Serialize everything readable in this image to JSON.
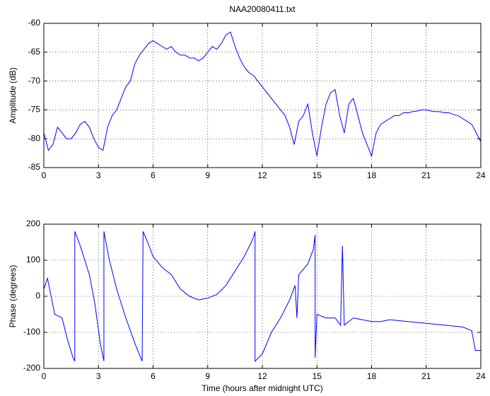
{
  "chart_data": [
    {
      "type": "line",
      "title": "NAA20080411.txt",
      "ylabel": "Amplitude (dB)",
      "x": [
        0,
        0.25,
        0.5,
        0.75,
        1,
        1.25,
        1.5,
        1.75,
        2,
        2.25,
        2.5,
        2.75,
        3,
        3.25,
        3.5,
        3.75,
        4,
        4.25,
        4.5,
        4.75,
        5,
        5.25,
        5.5,
        5.75,
        6,
        6.25,
        6.5,
        6.75,
        7,
        7.25,
        7.5,
        7.75,
        8,
        8.25,
        8.5,
        8.75,
        9,
        9.25,
        9.5,
        9.75,
        10,
        10.25,
        10.5,
        10.75,
        11,
        11.25,
        11.5,
        11.75,
        12,
        12.25,
        12.5,
        12.75,
        13,
        13.25,
        13.5,
        13.75,
        14,
        14.25,
        14.5,
        14.75,
        15,
        15.25,
        15.5,
        15.75,
        16,
        16.25,
        16.5,
        16.75,
        17,
        17.25,
        17.5,
        17.75,
        18,
        18.25,
        18.5,
        18.75,
        19,
        19.25,
        19.5,
        19.75,
        20,
        20.25,
        20.5,
        20.75,
        21,
        21.25,
        21.5,
        21.75,
        22,
        22.25,
        22.5,
        22.75,
        23,
        23.25,
        23.5,
        23.75,
        24
      ],
      "values": [
        -79,
        -82,
        -81,
        -78,
        -79,
        -80,
        -80,
        -79,
        -77.5,
        -77,
        -78,
        -80,
        -81.5,
        -82,
        -78,
        -76,
        -75,
        -73,
        -71,
        -70,
        -67,
        -65.5,
        -64.5,
        -63.5,
        -63,
        -63.5,
        -64,
        -64.5,
        -64,
        -65,
        -65.5,
        -65.5,
        -66,
        -66,
        -66.5,
        -66,
        -65,
        -64,
        -64.5,
        -63.5,
        -62,
        -61.5,
        -64,
        -66,
        -67.5,
        -68.5,
        -69,
        -70,
        -71,
        -72,
        -73,
        -74,
        -75,
        -76,
        -78,
        -81,
        -77,
        -76,
        -74,
        -79,
        -83,
        -78,
        -74,
        -72,
        -71.5,
        -76,
        -79,
        -74,
        -73,
        -76,
        -79,
        -81,
        -83,
        -79,
        -77.5,
        -77,
        -76.5,
        -76,
        -76,
        -75.5,
        -75.5,
        -75.3,
        -75.2,
        -75,
        -75,
        -75.2,
        -75.3,
        -75.3,
        -75.5,
        -75.5,
        -75.8,
        -76,
        -76.5,
        -77,
        -77.5,
        -79,
        -80.5
      ],
      "color": "#0000ff",
      "xlim": [
        0,
        24
      ],
      "xticks": [
        0,
        3,
        6,
        9,
        12,
        15,
        18,
        21,
        24
      ],
      "ylim": [
        -85,
        -60
      ],
      "yticks": [
        -85,
        -80,
        -75,
        -70,
        -65,
        -60
      ],
      "grid": true
    },
    {
      "type": "line",
      "ylabel": "Phase (degrees)",
      "xlabel": "Time (hours after midnight UTC)",
      "x": [
        0,
        0.2,
        0.4,
        0.6,
        1,
        1.3,
        1.6,
        1.7,
        1.7,
        2,
        2.5,
        2.8,
        3.1,
        3.3,
        3.3,
        3.6,
        4,
        4.5,
        5,
        5.4,
        5.45,
        5.7,
        6,
        6.5,
        7,
        7.5,
        8,
        8.5,
        9,
        9.5,
        10,
        10.5,
        11,
        11.4,
        11.55,
        11.6,
        11.6,
        12,
        12.5,
        13,
        13.5,
        13.8,
        13.9,
        14,
        14.5,
        14.8,
        14.9,
        14.9,
        15,
        15.5,
        16,
        16.3,
        16.4,
        16.5,
        17,
        17.5,
        18,
        18.5,
        19,
        20,
        21,
        22,
        23,
        23.5,
        23.7,
        24,
        24
      ],
      "values": [
        20,
        50,
        0,
        -50,
        -60,
        -120,
        -170,
        -180,
        180,
        140,
        60,
        -20,
        -130,
        -180,
        180,
        100,
        20,
        -60,
        -130,
        -180,
        180,
        150,
        110,
        80,
        60,
        20,
        0,
        -10,
        -5,
        5,
        30,
        70,
        110,
        150,
        170,
        180,
        -180,
        -160,
        -100,
        -60,
        -10,
        30,
        -60,
        60,
        90,
        130,
        170,
        -170,
        -50,
        -60,
        -60,
        -80,
        140,
        -80,
        -60,
        -65,
        -70,
        -70,
        -65,
        -70,
        -75,
        -80,
        -85,
        -95,
        -150,
        -150,
        -120
      ],
      "color": "#0000ff",
      "xlim": [
        0,
        24
      ],
      "xticks": [
        0,
        3,
        6,
        9,
        12,
        15,
        18,
        21,
        24
      ],
      "ylim": [
        -200,
        200
      ],
      "yticks": [
        -200,
        -100,
        0,
        100,
        200
      ],
      "grid": true
    }
  ]
}
